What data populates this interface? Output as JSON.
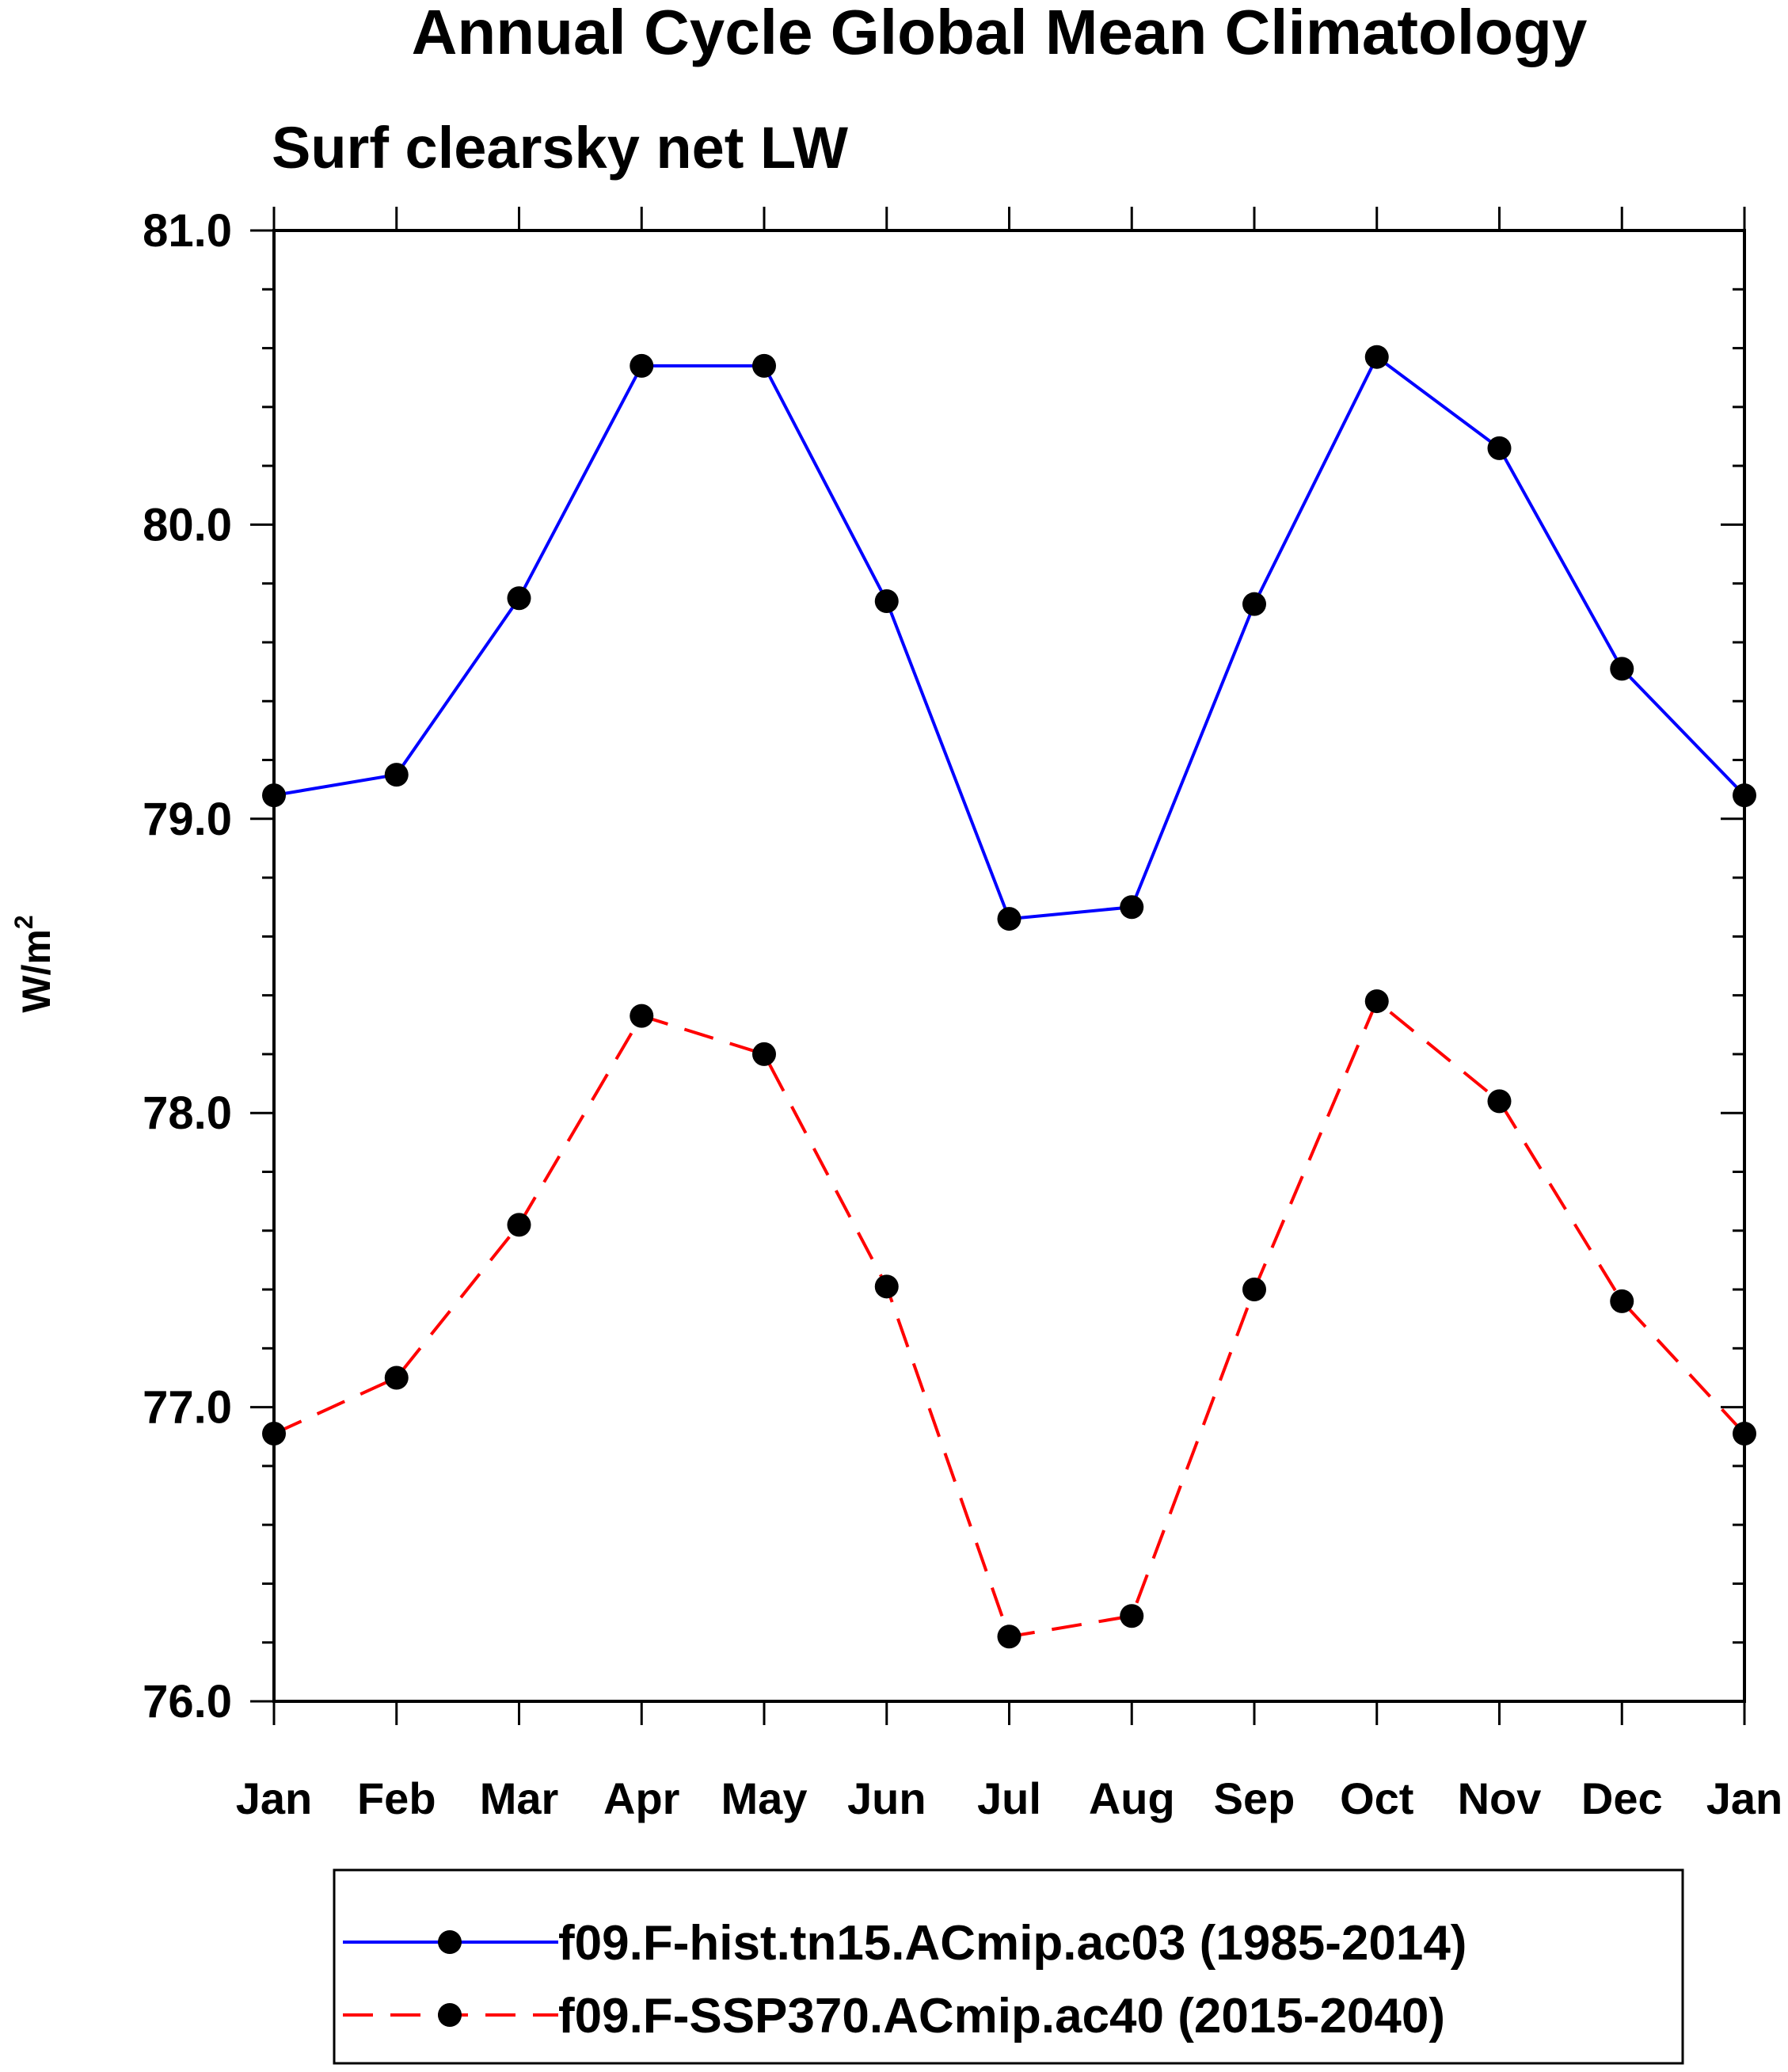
{
  "chart_data": {
    "type": "line",
    "title": "Annual Cycle Global Mean Climatology",
    "subtitle": "Surf clearsky net LW",
    "ylabel": "W/m",
    "ylabel_superscript": "2",
    "xlabel": "",
    "categories": [
      "Jan",
      "Feb",
      "Mar",
      "Apr",
      "May",
      "Jun",
      "Jul",
      "Aug",
      "Sep",
      "Oct",
      "Nov",
      "Dec",
      "Jan"
    ],
    "ylim": [
      76.0,
      81.0
    ],
    "yticks": [
      "76.0",
      "77.0",
      "78.0",
      "79.0",
      "80.0",
      "81.0"
    ],
    "ytick_values": [
      76.0,
      77.0,
      78.0,
      79.0,
      80.0,
      81.0
    ],
    "y_minor_step": 0.2,
    "grid": false,
    "legend_position": "bottom",
    "series": [
      {
        "name": "f09.F-hist.tn15.ACmip.ac03 (1985-2014)",
        "color": "#0000ff",
        "dashed": false,
        "values": [
          79.08,
          79.15,
          79.75,
          80.54,
          80.54,
          79.74,
          78.66,
          78.7,
          79.73,
          80.57,
          80.26,
          79.51,
          79.08
        ]
      },
      {
        "name": "f09.F-SSP370.ACmip.ac40 (2015-2040)",
        "color": "#ff0000",
        "dashed": true,
        "values": [
          76.91,
          77.1,
          77.62,
          78.33,
          78.2,
          77.41,
          76.22,
          76.29,
          77.4,
          78.38,
          78.04,
          77.36,
          76.91
        ]
      }
    ]
  }
}
